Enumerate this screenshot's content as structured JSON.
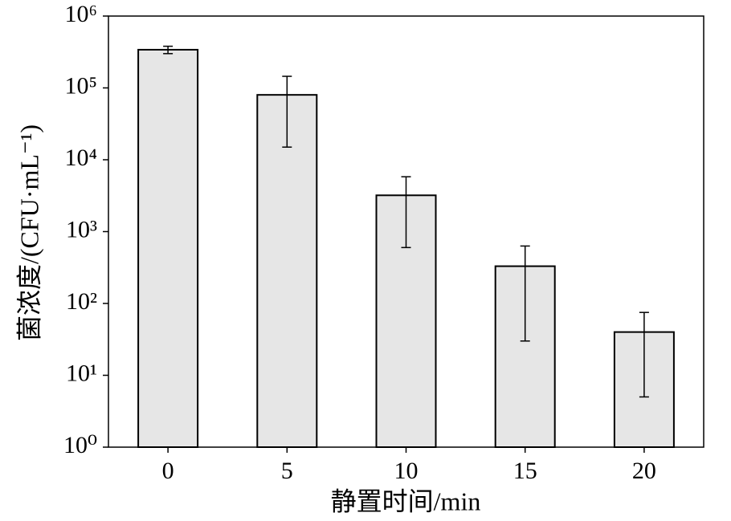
{
  "chart_data": {
    "type": "bar",
    "x_label": "静置时间/min",
    "y_label": "菌浓度/(CFU·mL⁻¹)",
    "categories": [
      "0",
      "5",
      "10",
      "15",
      "20"
    ],
    "values": [
      340000,
      80000,
      3200,
      330,
      40
    ],
    "errors": [
      40000,
      65000,
      2600,
      300,
      35
    ],
    "color": "#e6e6e6",
    "log_scale": true,
    "ylim": [
      1,
      1000000
    ],
    "yticks": [
      {
        "value": 1,
        "label": "10⁰"
      },
      {
        "value": 10,
        "label": "10¹"
      },
      {
        "value": 100,
        "label": "10²"
      },
      {
        "value": 1000,
        "label": "10³"
      },
      {
        "value": 10000,
        "label": "10⁴"
      },
      {
        "value": 100000,
        "label": "10⁵"
      },
      {
        "value": 1000000,
        "label": "10⁶"
      }
    ]
  }
}
